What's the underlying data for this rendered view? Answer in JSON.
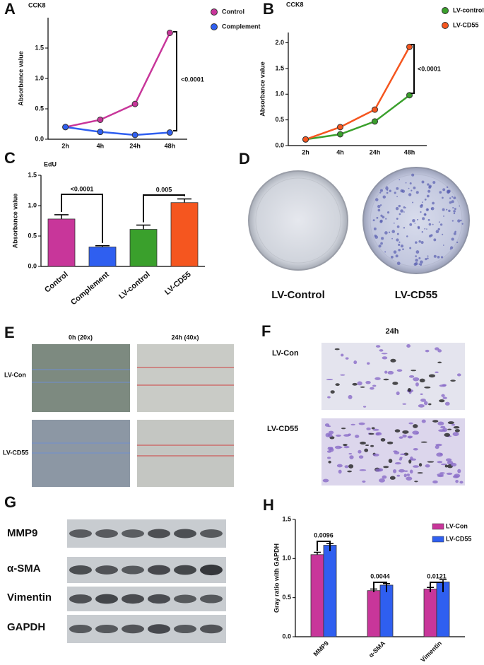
{
  "chart_data": [
    {
      "type": "line",
      "panel_label": "A",
      "title": "CCK8",
      "ylabel": "Absorbance value",
      "categories": [
        "2h",
        "4h",
        "24h",
        "48h"
      ],
      "series": [
        {
          "name": "Control",
          "color": "#c8369a",
          "values": [
            0.2,
            0.32,
            0.58,
            1.75
          ]
        },
        {
          "name": "Complement",
          "color": "#2f5ff0",
          "values": [
            0.2,
            0.12,
            0.07,
            0.11
          ]
        }
      ],
      "ylim": [
        0,
        2.0
      ],
      "yticks": [
        {
          "value": 0,
          "label": "0.0"
        },
        0.5,
        {
          "value": 1,
          "label": "1.0"
        },
        1.5
      ],
      "annotations": [
        "<0.0001"
      ]
    },
    {
      "type": "line",
      "panel_label": "B",
      "title": "CCK8",
      "ylabel": "Absorbance value",
      "categories": [
        "2h",
        "4h",
        "24h",
        "48h"
      ],
      "series": [
        {
          "name": "LV-control",
          "color": "#3aa02c",
          "values": [
            0.12,
            0.22,
            0.47,
            0.98
          ]
        },
        {
          "name": "LV-CD55",
          "color": "#f5561f",
          "values": [
            0.12,
            0.36,
            0.7,
            1.92
          ]
        }
      ],
      "ylim": [
        0,
        2.2
      ],
      "yticks": [
        {
          "value": 0,
          "label": "0.0"
        },
        0.5,
        {
          "value": 1,
          "label": "1.0"
        },
        1.5,
        {
          "value": 2,
          "label": "2.0"
        }
      ],
      "annotations": [
        "<0.0001"
      ]
    },
    {
      "type": "bar",
      "panel_label": "C",
      "title": "EdU",
      "ylabel": "Absorbance value",
      "categories": [
        "Control",
        "Complement",
        "LV-control",
        "LV-CD55"
      ],
      "values": [
        0.78,
        0.32,
        0.61,
        1.05
      ],
      "errors": [
        0.07,
        0.02,
        0.07,
        0.06
      ],
      "colors": [
        "#c8369a",
        "#2f5ff0",
        "#3aa02c",
        "#f5561f"
      ],
      "ylim": [
        0,
        1.5
      ],
      "yticks": [
        {
          "value": 0,
          "label": "0.0"
        },
        0.5,
        {
          "value": 1,
          "label": "1.0"
        },
        1.5
      ],
      "annotations": [
        "<0.0001",
        "0.005"
      ]
    },
    {
      "type": "bar",
      "panel_label": "H",
      "ylabel": "Gray ratio with GAPDH",
      "categories": [
        "MMP9",
        "α-SMA",
        "Vimentin"
      ],
      "series": [
        {
          "name": "LV-Con",
          "color": "#c8369a",
          "values": [
            1.05,
            0.59,
            0.61
          ],
          "errors": [
            0.03,
            0.02,
            0.02
          ]
        },
        {
          "name": "LV-CD55",
          "color": "#2f5ff0",
          "values": [
            1.17,
            0.66,
            0.7
          ],
          "errors": [
            0.02,
            0.02,
            0.03
          ]
        }
      ],
      "ylim": [
        0,
        1.5
      ],
      "yticks": [
        {
          "value": 0,
          "label": "0.0"
        },
        0.5,
        {
          "value": 1,
          "label": "1.0"
        },
        1.5
      ],
      "annotations": [
        "0.0096",
        "0.0044",
        "0.0121"
      ]
    }
  ],
  "colony": {
    "panel_label": "D",
    "labels": [
      "LV-Control",
      "LV-CD55"
    ]
  },
  "scratch": {
    "panel_label": "E",
    "columns": [
      "0h (20x)",
      "24h (40x)"
    ],
    "rows": [
      "LV-Con",
      "LV-CD55"
    ]
  },
  "transwell": {
    "panel_label": "F",
    "title": "24h",
    "rows": [
      "LV-Con",
      "LV-CD55"
    ]
  },
  "western": {
    "panel_label": "G",
    "rows": [
      "MMP9",
      "α-SMA",
      "Vimentin",
      "GAPDH"
    ]
  }
}
